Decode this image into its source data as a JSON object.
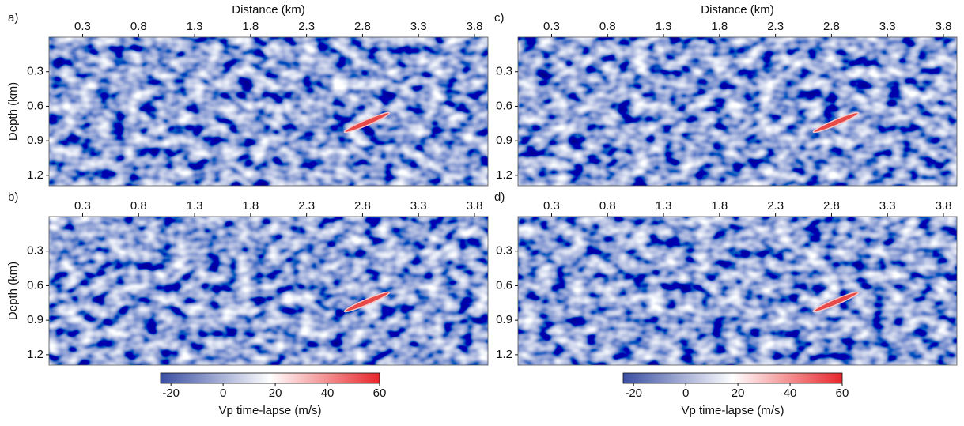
{
  "chart_data": [
    {
      "type": "image",
      "panel_label": "a)",
      "xlabel": "Distance (km)",
      "ylabel": "Depth (km)",
      "xlim": [
        0,
        3.92
      ],
      "ylim": [
        0,
        1.29
      ],
      "xticks": [
        0.3,
        0.8,
        1.3,
        1.8,
        2.3,
        2.8,
        3.3,
        3.8
      ],
      "yticks": [
        0.3,
        0.6,
        0.9,
        1.2
      ]
    },
    {
      "type": "image",
      "panel_label": "b)",
      "ylabel": "Depth (km)",
      "xlim": [
        0,
        3.92
      ],
      "ylim": [
        0,
        1.29
      ],
      "xticks": [
        0.3,
        0.8,
        1.3,
        1.8,
        2.3,
        2.8,
        3.3,
        3.8
      ],
      "yticks": [
        0.3,
        0.6,
        0.9,
        1.2
      ]
    },
    {
      "type": "image",
      "panel_label": "c)",
      "xlabel": "Distance (km)",
      "xlim": [
        0,
        3.92
      ],
      "ylim": [
        0,
        1.29
      ],
      "xticks": [
        0.3,
        0.8,
        1.3,
        1.8,
        2.3,
        2.8,
        3.3,
        3.8
      ],
      "yticks": [
        0.3,
        0.6,
        0.9,
        1.2
      ]
    },
    {
      "type": "image",
      "panel_label": "d)",
      "xlim": [
        0,
        3.92
      ],
      "ylim": [
        0,
        1.29
      ],
      "xticks": [
        0.3,
        0.8,
        1.3,
        1.8,
        2.3,
        2.8,
        3.3,
        3.8
      ],
      "yticks": [
        0.3,
        0.6,
        0.9,
        1.2
      ]
    },
    {
      "type": "colorbar",
      "label": "Vp time-lapse (m/s)",
      "xlim": [
        -24,
        60
      ],
      "xticks": [
        -20,
        0,
        20,
        40,
        60
      ],
      "colors": [
        "#3a4ea3",
        "#ffffff",
        "#e8262a"
      ]
    },
    {
      "type": "colorbar",
      "label": "Vp time-lapse (m/s)",
      "xlim": [
        -24,
        60
      ],
      "xticks": [
        -20,
        0,
        20,
        40,
        60
      ],
      "colors": [
        "#3a4ea3",
        "#ffffff",
        "#e8262a"
      ]
    }
  ]
}
